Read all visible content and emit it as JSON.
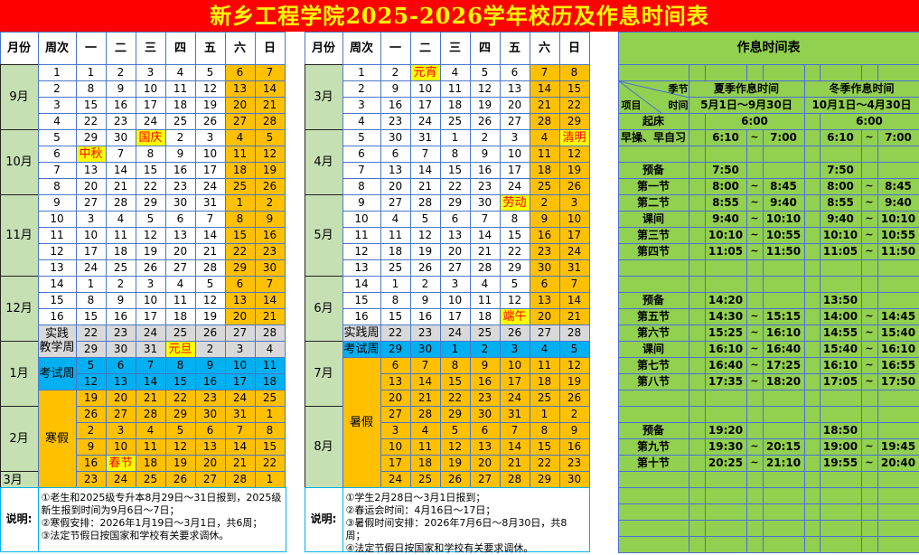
{
  "title": "新乡工程学院2025-2026学年校历及作息时间表",
  "calendar": {
    "headers": [
      "月份",
      "周次",
      "一",
      "二",
      "三",
      "四",
      "五",
      "六",
      "日"
    ],
    "notes_label": "说明:",
    "left": {
      "months": [
        {
          "label": "9月",
          "rows": 4
        },
        {
          "label": "10月",
          "rows": 4
        },
        {
          "label": "11月",
          "rows": 5
        },
        {
          "label": "12月",
          "rows": 4
        },
        {
          "label": "1月",
          "rows": 4
        },
        {
          "label": "2月",
          "rows": 4
        },
        {
          "label": "3月",
          "rows": 1
        }
      ],
      "rows": [
        {
          "week": "1",
          "type": "normal",
          "days": [
            "1",
            "2",
            "3",
            "4",
            "5",
            "6",
            "7"
          ]
        },
        {
          "week": "2",
          "type": "normal",
          "days": [
            "8",
            "9",
            "10",
            "11",
            "12",
            "13",
            "14"
          ]
        },
        {
          "week": "3",
          "type": "normal",
          "days": [
            "15",
            "16",
            "17",
            "18",
            "19",
            "20",
            "21"
          ]
        },
        {
          "week": "4",
          "type": "normal",
          "days": [
            "22",
            "23",
            "24",
            "25",
            "26",
            "27",
            "28"
          ]
        },
        {
          "week": "5",
          "type": "normal",
          "days": [
            "29",
            "30",
            "国庆",
            "2",
            "3",
            "4",
            "5"
          ]
        },
        {
          "week": "6",
          "type": "normal",
          "days": [
            "中秋",
            "7",
            "8",
            "9",
            "10",
            "11",
            "12"
          ]
        },
        {
          "week": "7",
          "type": "normal",
          "days": [
            "13",
            "14",
            "15",
            "16",
            "17",
            "18",
            "19"
          ]
        },
        {
          "week": "8",
          "type": "normal",
          "days": [
            "20",
            "21",
            "22",
            "23",
            "24",
            "25",
            "26"
          ]
        },
        {
          "week": "9",
          "type": "normal",
          "days": [
            "27",
            "28",
            "29",
            "30",
            "31",
            "1",
            "2"
          ]
        },
        {
          "week": "10",
          "type": "normal",
          "days": [
            "3",
            "4",
            "5",
            "6",
            "7",
            "8",
            "9"
          ]
        },
        {
          "week": "11",
          "type": "normal",
          "days": [
            "10",
            "11",
            "12",
            "13",
            "14",
            "15",
            "16"
          ]
        },
        {
          "week": "12",
          "type": "normal",
          "days": [
            "17",
            "18",
            "19",
            "20",
            "21",
            "22",
            "23"
          ]
        },
        {
          "week": "13",
          "type": "normal",
          "days": [
            "24",
            "25",
            "26",
            "27",
            "28",
            "29",
            "30"
          ]
        },
        {
          "week": "14",
          "type": "normal",
          "days": [
            "1",
            "2",
            "3",
            "4",
            "5",
            "6",
            "7"
          ]
        },
        {
          "week": "15",
          "type": "normal",
          "days": [
            "8",
            "9",
            "10",
            "11",
            "12",
            "13",
            "14"
          ]
        },
        {
          "week": "16",
          "type": "normal",
          "days": [
            "15",
            "16",
            "17",
            "18",
            "19",
            "20",
            "21"
          ]
        },
        {
          "week": "实践\n教学周",
          "span": 2,
          "type": "practice",
          "days": [
            "22",
            "23",
            "24",
            "25",
            "26",
            "27",
            "28"
          ]
        },
        {
          "week": null,
          "type": "practice",
          "days": [
            "29",
            "30",
            "31",
            "元旦",
            "2",
            "3",
            "4"
          ]
        },
        {
          "week": "考试周",
          "span": 2,
          "type": "exam",
          "days": [
            "5",
            "6",
            "7",
            "8",
            "9",
            "10",
            "11"
          ]
        },
        {
          "week": null,
          "type": "exam",
          "days": [
            "12",
            "13",
            "14",
            "15",
            "16",
            "17",
            "18"
          ]
        },
        {
          "week": "寒假",
          "span": 6,
          "type": "vacation",
          "days": [
            "19",
            "20",
            "21",
            "22",
            "23",
            "24",
            "25"
          ]
        },
        {
          "week": null,
          "type": "vacation",
          "days": [
            "26",
            "27",
            "28",
            "29",
            "30",
            "31",
            "1"
          ]
        },
        {
          "week": null,
          "type": "vacation",
          "days": [
            "2",
            "3",
            "4",
            "5",
            "6",
            "7",
            "8"
          ]
        },
        {
          "week": null,
          "type": "vacation",
          "days": [
            "9",
            "10",
            "11",
            "12",
            "13",
            "14",
            "15"
          ]
        },
        {
          "week": null,
          "type": "vacation",
          "days": [
            "16",
            "春节",
            "18",
            "19",
            "20",
            "21",
            "22"
          ]
        },
        {
          "week": null,
          "type": "vacation",
          "days": [
            "23",
            "24",
            "25",
            "26",
            "27",
            "28",
            "1"
          ]
        }
      ],
      "notes": [
        "①老生和2025级专升本8月29日～31日报到，2025级新生报到时间为9月6日～7日；",
        "②寒假安排：2026年1月19日～3月1日，共6周；",
        "③法定节假日按国家和学校有关要求调休。"
      ]
    },
    "right": {
      "months": [
        {
          "label": "3月",
          "rows": 4
        },
        {
          "label": "4月",
          "rows": 4
        },
        {
          "label": "5月",
          "rows": 5
        },
        {
          "label": "6月",
          "rows": 4
        },
        {
          "label": "7月",
          "rows": 4
        },
        {
          "label": "8月",
          "rows": 5
        }
      ],
      "rows": [
        {
          "week": "1",
          "type": "normal",
          "days": [
            "2",
            "元宵",
            "4",
            "5",
            "6",
            "7",
            "8"
          ]
        },
        {
          "week": "2",
          "type": "normal",
          "days": [
            "9",
            "10",
            "11",
            "12",
            "13",
            "14",
            "15"
          ]
        },
        {
          "week": "3",
          "type": "normal",
          "days": [
            "16",
            "17",
            "18",
            "19",
            "20",
            "21",
            "22"
          ]
        },
        {
          "week": "4",
          "type": "normal",
          "days": [
            "23",
            "24",
            "25",
            "26",
            "27",
            "28",
            "29"
          ]
        },
        {
          "week": "5",
          "type": "normal",
          "days": [
            "30",
            "31",
            "1",
            "2",
            "3",
            "4",
            "清明"
          ]
        },
        {
          "week": "6",
          "type": "normal",
          "days": [
            "6",
            "7",
            "8",
            "9",
            "10",
            "11",
            "12"
          ]
        },
        {
          "week": "7",
          "type": "normal",
          "days": [
            "13",
            "14",
            "15",
            "16",
            "17",
            "18",
            "19"
          ]
        },
        {
          "week": "8",
          "type": "normal",
          "days": [
            "20",
            "21",
            "22",
            "23",
            "24",
            "25",
            "26"
          ]
        },
        {
          "week": "9",
          "type": "normal",
          "days": [
            "27",
            "28",
            "29",
            "30",
            "劳动",
            "2",
            "3"
          ]
        },
        {
          "week": "10",
          "type": "normal",
          "days": [
            "4",
            "5",
            "6",
            "7",
            "8",
            "9",
            "10"
          ]
        },
        {
          "week": "11",
          "type": "normal",
          "days": [
            "11",
            "12",
            "13",
            "14",
            "15",
            "16",
            "17"
          ]
        },
        {
          "week": "12",
          "type": "normal",
          "days": [
            "18",
            "19",
            "20",
            "21",
            "22",
            "23",
            "24"
          ]
        },
        {
          "week": "13",
          "type": "normal",
          "days": [
            "25",
            "26",
            "27",
            "28",
            "29",
            "30",
            "31"
          ]
        },
        {
          "week": "14",
          "type": "normal",
          "days": [
            "1",
            "2",
            "3",
            "4",
            "5",
            "6",
            "7"
          ]
        },
        {
          "week": "15",
          "type": "normal",
          "days": [
            "8",
            "9",
            "10",
            "11",
            "12",
            "13",
            "14"
          ]
        },
        {
          "week": "16",
          "type": "normal",
          "days": [
            "15",
            "16",
            "17",
            "18",
            "端午",
            "20",
            "21"
          ]
        },
        {
          "week": "实践周",
          "type": "practice",
          "days": [
            "22",
            "23",
            "24",
            "25",
            "26",
            "27",
            "28"
          ]
        },
        {
          "week": "考试周",
          "type": "exam",
          "days": [
            "29",
            "30",
            "1",
            "2",
            "3",
            "4",
            "5"
          ]
        },
        {
          "week": "暑假",
          "span": 8,
          "type": "vacation",
          "days": [
            "6",
            "7",
            "8",
            "9",
            "10",
            "11",
            "12"
          ]
        },
        {
          "week": null,
          "type": "vacation",
          "days": [
            "13",
            "14",
            "15",
            "16",
            "17",
            "18",
            "19"
          ]
        },
        {
          "week": null,
          "type": "vacation",
          "days": [
            "20",
            "21",
            "22",
            "23",
            "24",
            "25",
            "26"
          ]
        },
        {
          "week": null,
          "type": "vacation",
          "days": [
            "27",
            "28",
            "29",
            "30",
            "31",
            "1",
            "2"
          ]
        },
        {
          "week": null,
          "type": "vacation",
          "days": [
            "3",
            "4",
            "5",
            "6",
            "7",
            "8",
            "9"
          ]
        },
        {
          "week": null,
          "type": "vacation",
          "days": [
            "10",
            "11",
            "12",
            "13",
            "14",
            "15",
            "16"
          ]
        },
        {
          "week": null,
          "type": "vacation",
          "days": [
            "17",
            "18",
            "19",
            "20",
            "21",
            "22",
            "23"
          ]
        },
        {
          "week": null,
          "type": "vacation",
          "days": [
            "24",
            "25",
            "26",
            "27",
            "28",
            "29",
            "30"
          ]
        }
      ],
      "notes": [
        "①学生2月28日～3月1日报到；",
        "②春运会时间：4月16日～17日；",
        "③暑假时间安排：2026年7月6日～8月30日，共8周；",
        "④法定节假日按国家和学校有关要求调休。"
      ]
    }
  },
  "schedule": {
    "title": "作息时间表",
    "corner": {
      "season": "季节",
      "time": "时间",
      "item": "项目"
    },
    "summer": {
      "label": "夏季作息时间",
      "range": "5月1日～9月30日"
    },
    "winter": {
      "label": "冬季作息时间",
      "range": "10月1日～4月30日"
    },
    "separator": "~",
    "rows": [
      {
        "label": "起床",
        "summer": [
          "6:00"
        ],
        "winter": [
          "6:00"
        ]
      },
      {
        "label": "早操、早自习",
        "summer": [
          "6:10",
          "7:00"
        ],
        "winter": [
          "6:10",
          "7:00"
        ]
      },
      {},
      {
        "label": "预备",
        "summer": [
          "7:50"
        ],
        "winter": [
          "7:50"
        ],
        "start_only": true
      },
      {
        "label": "第一节",
        "summer": [
          "8:00",
          "8:45"
        ],
        "winter": [
          "8:00",
          "8:45"
        ]
      },
      {
        "label": "第二节",
        "summer": [
          "8:55",
          "9:40"
        ],
        "winter": [
          "8:55",
          "9:40"
        ]
      },
      {
        "label": "课间",
        "summer": [
          "9:40",
          "10:10"
        ],
        "winter": [
          "9:40",
          "10:10"
        ]
      },
      {
        "label": "第三节",
        "summer": [
          "10:10",
          "10:55"
        ],
        "winter": [
          "10:10",
          "10:55"
        ]
      },
      {
        "label": "第四节",
        "summer": [
          "11:05",
          "11:50"
        ],
        "winter": [
          "11:05",
          "11:50"
        ]
      },
      {},
      {},
      {
        "label": "预备",
        "summer": [
          "14:20"
        ],
        "winter": [
          "13:50"
        ],
        "start_only": true
      },
      {
        "label": "第五节",
        "summer": [
          "14:30",
          "15:15"
        ],
        "winter": [
          "14:00",
          "14:45"
        ]
      },
      {
        "label": "第六节",
        "summer": [
          "15:25",
          "16:10"
        ],
        "winter": [
          "14:55",
          "15:40"
        ]
      },
      {
        "label": "课间",
        "summer": [
          "16:10",
          "16:40"
        ],
        "winter": [
          "15:40",
          "16:10"
        ]
      },
      {
        "label": "第七节",
        "summer": [
          "16:40",
          "17:25"
        ],
        "winter": [
          "16:10",
          "16:55"
        ]
      },
      {
        "label": "第八节",
        "summer": [
          "17:35",
          "18:20"
        ],
        "winter": [
          "17:05",
          "17:50"
        ]
      },
      {},
      {},
      {
        "label": "预备",
        "summer": [
          "19:20"
        ],
        "winter": [
          "18:50"
        ],
        "start_only": true
      },
      {
        "label": "第九节",
        "summer": [
          "19:30",
          "20:15"
        ],
        "winter": [
          "19:00",
          "19:45"
        ]
      },
      {
        "label": "第十节",
        "summer": [
          "20:25",
          "21:10"
        ],
        "winter": [
          "19:55",
          "20:40"
        ]
      },
      {},
      {},
      {},
      {},
      {}
    ]
  },
  "colors": {
    "title_bg": "#ff0000",
    "title_text": "#ffff00",
    "month_bg": "#c6e0b4",
    "weekend": "#ffc000",
    "holiday_bg": "#ffff00",
    "holiday_text": "#ff0000",
    "practice": "#d9d9d9",
    "exam": "#00b0f0",
    "schedule_bg": "#92d050"
  }
}
